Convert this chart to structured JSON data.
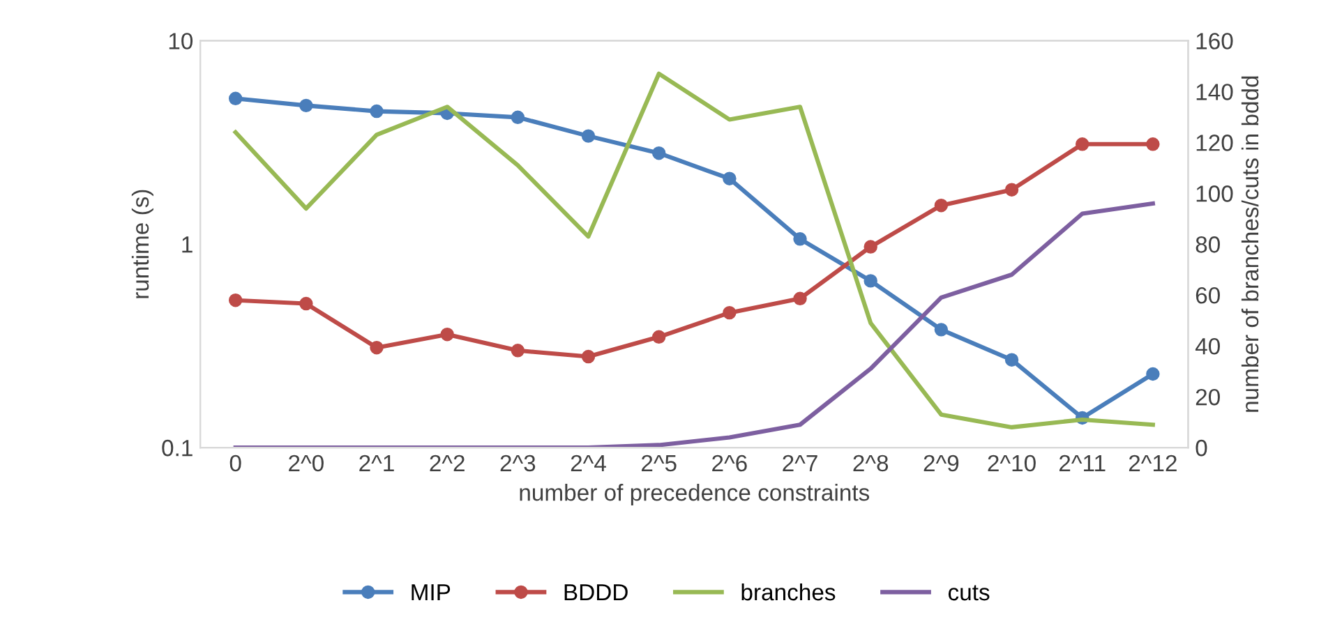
{
  "chart_data": {
    "type": "line",
    "xlabel": "number of precedence constraints",
    "ylabel": "runtime (s)",
    "y2label": "number of branches/cuts in bddd",
    "categories": [
      "0",
      "2^0",
      "2^1",
      "2^2",
      "2^3",
      "2^4",
      "2^5",
      "2^6",
      "2^7",
      "2^8",
      "2^9",
      "2^10",
      "2^11",
      "2^12"
    ],
    "log": "y",
    "ylim": [
      0.1,
      10
    ],
    "yticks": [
      0.1,
      1,
      10
    ],
    "y2lim": [
      0,
      160
    ],
    "y2ticks": [
      0,
      20,
      40,
      60,
      80,
      100,
      120,
      140,
      160
    ],
    "grid": false,
    "legend": "bottom",
    "line_style": "solid",
    "series": [
      {
        "name": "MIP",
        "color": "#4a7ebb",
        "marker": "circle",
        "values": [
          5.2,
          4.8,
          4.5,
          4.4,
          4.2,
          3.4,
          2.8,
          2.1,
          1.06,
          0.66,
          0.38,
          0.27,
          0.14,
          0.23
        ]
      },
      {
        "name": "BDDD",
        "color": "#be4b48",
        "marker": "circle",
        "values": [
          0.53,
          0.51,
          0.31,
          0.36,
          0.3,
          0.28,
          0.35,
          0.46,
          0.54,
          0.97,
          1.55,
          1.85,
          3.1,
          3.1
        ]
      },
      {
        "name": "branches",
        "color": "#98b954",
        "marker": "none",
        "axis": "y2",
        "values": [
          124,
          94,
          123,
          134,
          111,
          83,
          147,
          129,
          134,
          49,
          13,
          8,
          11,
          9
        ]
      },
      {
        "name": "cuts",
        "color": "#7d5fa0",
        "marker": "none",
        "axis": "y2",
        "values": [
          0,
          0,
          0,
          0,
          0,
          0,
          1,
          4,
          9,
          31,
          59,
          68,
          92,
          96
        ]
      }
    ]
  }
}
